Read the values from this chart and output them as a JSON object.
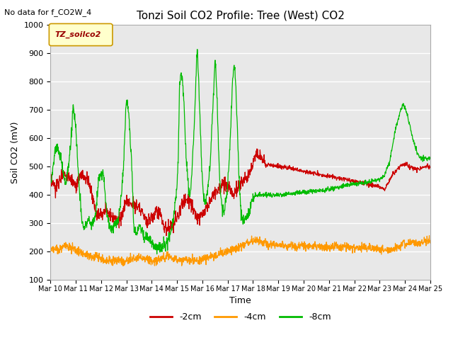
{
  "title": "Tonzi Soil CO2 Profile: Tree (West) CO2",
  "subtitle": "No data for f_CO2W_4",
  "ylabel": "Soil CO2 (mV)",
  "xlabel": "Time",
  "ylim": [
    100,
    1000
  ],
  "legend_label": "TZ_soilco2",
  "series_labels": [
    "-2cm",
    "-4cm",
    "-8cm"
  ],
  "series_colors": [
    "#cc0000",
    "#ff9900",
    "#00bb00"
  ],
  "bg_color": "#e8e8e8",
  "x_tick_labels": [
    "Mar 10",
    "Mar 11",
    "Mar 12",
    "Mar 13",
    "Mar 14",
    "Mar 15",
    "Mar 16",
    "Mar 17",
    "Mar 18",
    "Mar 19",
    "Mar 20",
    "Mar 21",
    "Mar 22",
    "Mar 23",
    "Mar 24",
    "Mar 25"
  ],
  "yticks": [
    100,
    200,
    300,
    400,
    500,
    600,
    700,
    800,
    900,
    1000
  ]
}
